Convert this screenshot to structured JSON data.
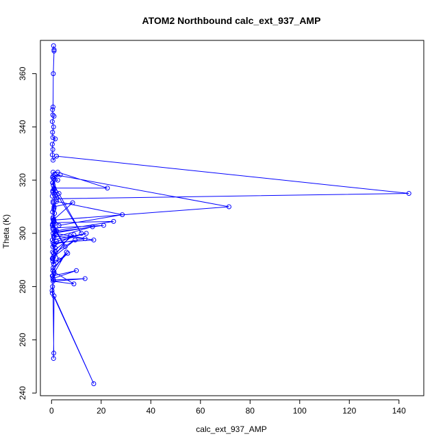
{
  "chart_data": {
    "type": "line",
    "title": "ATOM2 Northbound calc_ext_937_AMP",
    "xlabel": "calc_ext_937_AMP",
    "ylabel": "Theta (K)",
    "xlim": [
      -4.5,
      150
    ],
    "ylim": [
      239,
      372.5
    ],
    "xticks": [
      0,
      20,
      40,
      60,
      80,
      100,
      120,
      140
    ],
    "yticks": [
      240,
      260,
      280,
      300,
      320,
      340,
      360
    ],
    "grid": false,
    "legend": "none",
    "series_color": "#0000ff",
    "marker": "open-circle",
    "points": [
      [
        1.0,
        369.0
      ],
      [
        0.8,
        370.5
      ],
      [
        1.0,
        368.5
      ],
      [
        0.7,
        360.0
      ],
      [
        0.6,
        347.5
      ],
      [
        0.4,
        346.5
      ],
      [
        0.5,
        344.5
      ],
      [
        1.0,
        344.0
      ],
      [
        0.3,
        342.0
      ],
      [
        0.8,
        340.0
      ],
      [
        0.4,
        338.0
      ],
      [
        0.5,
        336.0
      ],
      [
        1.5,
        335.5
      ],
      [
        0.3,
        333.5
      ],
      [
        0.5,
        331.5
      ],
      [
        0.3,
        329.5
      ],
      [
        0.6,
        327.5
      ],
      [
        2.0,
        329.0
      ],
      [
        144.0,
        315.0
      ],
      [
        2.0,
        313.0
      ],
      [
        0.4,
        321.0
      ],
      [
        0.6,
        323.0
      ],
      [
        2.5,
        323.0
      ],
      [
        22.5,
        317.0
      ],
      [
        1.0,
        317.0
      ],
      [
        0.5,
        315.5
      ],
      [
        0.3,
        314.0
      ],
      [
        1.5,
        322.0
      ],
      [
        71.5,
        310.0
      ],
      [
        1.0,
        305.0
      ],
      [
        0.6,
        311.5
      ],
      [
        1.0,
        309.5
      ],
      [
        0.4,
        308.0
      ],
      [
        2.0,
        312.0
      ],
      [
        28.5,
        307.0
      ],
      [
        3.0,
        303.0
      ],
      [
        0.6,
        306.0
      ],
      [
        0.8,
        304.0
      ],
      [
        25.0,
        304.5
      ],
      [
        2.0,
        301.0
      ],
      [
        1.0,
        303.5
      ],
      [
        0.5,
        302.0
      ],
      [
        21.0,
        303.0
      ],
      [
        1.2,
        300.5
      ],
      [
        1.0,
        298.5
      ],
      [
        16.5,
        302.5
      ],
      [
        0.6,
        300.0
      ],
      [
        0.3,
        297.5
      ],
      [
        14.0,
        300.0
      ],
      [
        2.0,
        297.0
      ],
      [
        0.6,
        296.5
      ],
      [
        17.0,
        297.5
      ],
      [
        1.5,
        300.0
      ],
      [
        0.8,
        299.0
      ],
      [
        13.5,
        298.0
      ],
      [
        1.0,
        296.0
      ],
      [
        0.5,
        295.0
      ],
      [
        9.0,
        299.5
      ],
      [
        0.4,
        293.0
      ],
      [
        1.5,
        294.5
      ],
      [
        0.8,
        292.5
      ],
      [
        9.5,
        297.5
      ],
      [
        0.6,
        291.0
      ],
      [
        0.3,
        290.5
      ],
      [
        7.5,
        299.0
      ],
      [
        1.0,
        291.5
      ],
      [
        0.5,
        289.5
      ],
      [
        3.0,
        290.0
      ],
      [
        1.5,
        293.0
      ],
      [
        0.8,
        288.5
      ],
      [
        6.5,
        292.5
      ],
      [
        0.6,
        287.0
      ],
      [
        0.5,
        286.0
      ],
      [
        6.0,
        293.0
      ],
      [
        1.0,
        285.0
      ],
      [
        0.3,
        284.0
      ],
      [
        10.0,
        286.0
      ],
      [
        0.5,
        283.0
      ],
      [
        0.8,
        282.5
      ],
      [
        13.5,
        283.0
      ],
      [
        0.6,
        282.0
      ],
      [
        9.0,
        281.0
      ],
      [
        1.0,
        285.5
      ],
      [
        0.4,
        280.0
      ],
      [
        0.2,
        278.5
      ],
      [
        0.3,
        277.5
      ],
      [
        17.0,
        243.5
      ],
      [
        1.0,
        276.5
      ],
      [
        0.8,
        253.0
      ],
      [
        0.9,
        255.0
      ],
      [
        0.5,
        284.0
      ],
      [
        0.6,
        290.5
      ],
      [
        1.0,
        295.5
      ],
      [
        1.5,
        301.0
      ],
      [
        5.5,
        295.0
      ],
      [
        0.4,
        303.5
      ],
      [
        0.7,
        305.0
      ],
      [
        8.5,
        311.5
      ],
      [
        1.0,
        310.0
      ],
      [
        1.5,
        314.0
      ],
      [
        0.5,
        316.0
      ],
      [
        3.0,
        315.0
      ],
      [
        0.7,
        318.0
      ],
      [
        0.4,
        319.0
      ],
      [
        2.5,
        320.0
      ],
      [
        0.6,
        321.5
      ],
      [
        3.5,
        322.0
      ],
      [
        0.8,
        320.5
      ],
      [
        0.5,
        319.0
      ],
      [
        12.0,
        300.0
      ],
      [
        1.0,
        316.5
      ],
      [
        0.6,
        312.0
      ],
      [
        0.9,
        309.0
      ],
      [
        1.2,
        307.5
      ],
      [
        0.5,
        305.5
      ],
      [
        0.8,
        304.5
      ],
      [
        0.3,
        303.0
      ],
      [
        0.6,
        301.5
      ]
    ]
  }
}
